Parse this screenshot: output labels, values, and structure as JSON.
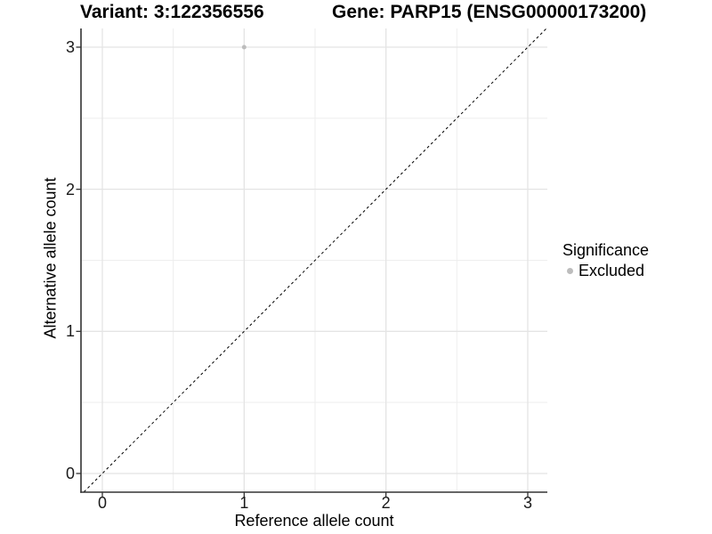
{
  "header": {
    "variant_title": "Variant: 3:122356556",
    "gene_title": "Gene: PARP15 (ENSG00000173200)"
  },
  "legend": {
    "title": "Significance",
    "items": [
      {
        "label": "Excluded",
        "color": "#bdbdbd"
      }
    ]
  },
  "chart_data": {
    "type": "scatter",
    "title": "Variant: 3:122356556   Gene: PARP15 (ENSG00000173200)",
    "xlabel": "Reference allele count",
    "ylabel": "Alternative allele count",
    "xlim": [
      -0.15,
      3.15
    ],
    "ylim": [
      -0.13,
      3.13
    ],
    "xticks": [
      0,
      1,
      2,
      3
    ],
    "yticks": [
      0,
      1,
      2,
      3
    ],
    "minor_gridlines": [
      0.5,
      1.5,
      2.5
    ],
    "grid": true,
    "legend_position": "right",
    "series": [
      {
        "name": "Excluded",
        "color": "#bdbdbd",
        "points": [
          {
            "x": 1,
            "y": 3
          }
        ]
      }
    ],
    "reference_line": {
      "slope": 1,
      "intercept": 0,
      "linetype": "dashed",
      "color": "#000000"
    }
  },
  "colors": {
    "background": "#ffffff",
    "grid_major": "#e4e4e4",
    "grid_minor": "#eeeeee",
    "axis_line": "#333333",
    "text": "#000000",
    "point": "#bdbdbd"
  }
}
